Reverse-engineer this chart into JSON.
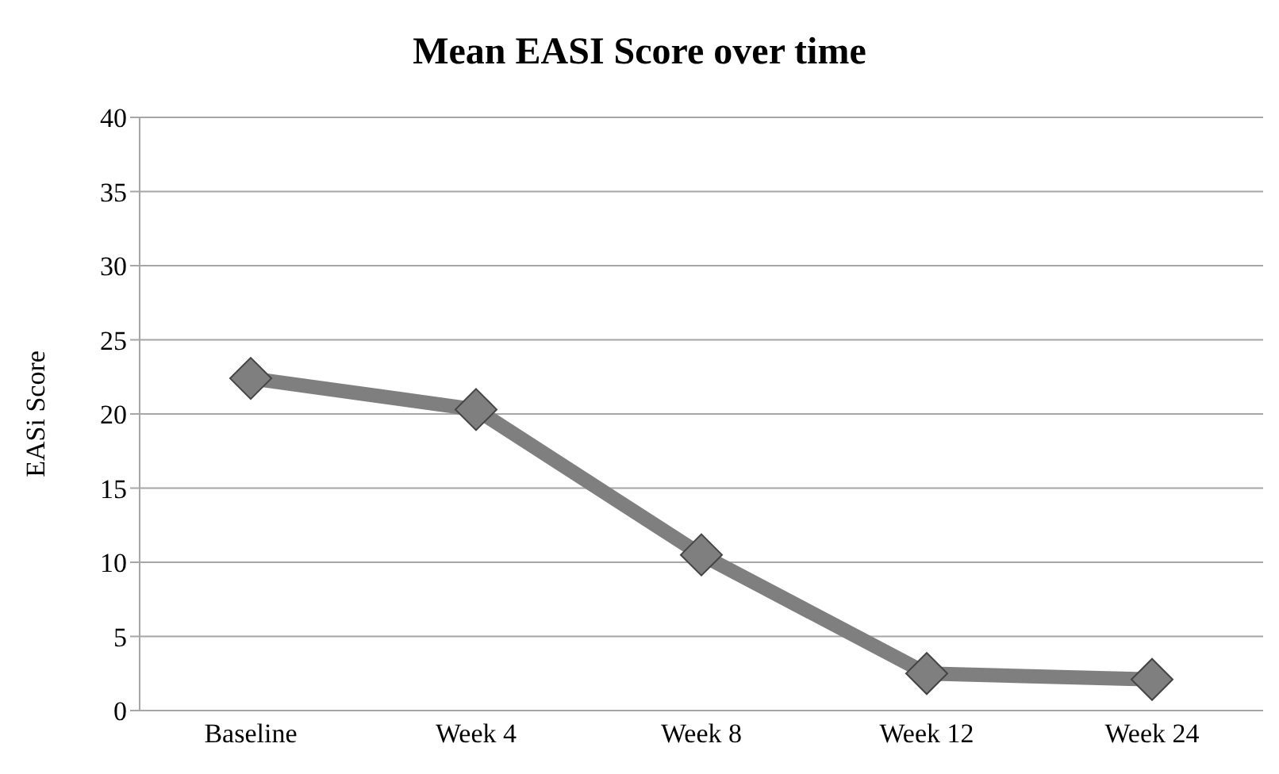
{
  "chart_data": {
    "type": "line",
    "title": "Mean EASI Score over time",
    "ylabel": "EASi Score",
    "categories": [
      "Baseline",
      "Week 4",
      "Week 8",
      "Week 12",
      "Week 24"
    ],
    "series": [
      {
        "color": "#7f7f7f",
        "values": [
          22.4,
          20.3,
          10.5,
          2.5,
          2.1
        ]
      }
    ],
    "ylim": [
      0,
      40
    ],
    "yticks": [
      0,
      5,
      10,
      15,
      20,
      25,
      30,
      35,
      40
    ],
    "grid": "y",
    "legend": false,
    "marker": "diamond",
    "line_style": "solid"
  }
}
